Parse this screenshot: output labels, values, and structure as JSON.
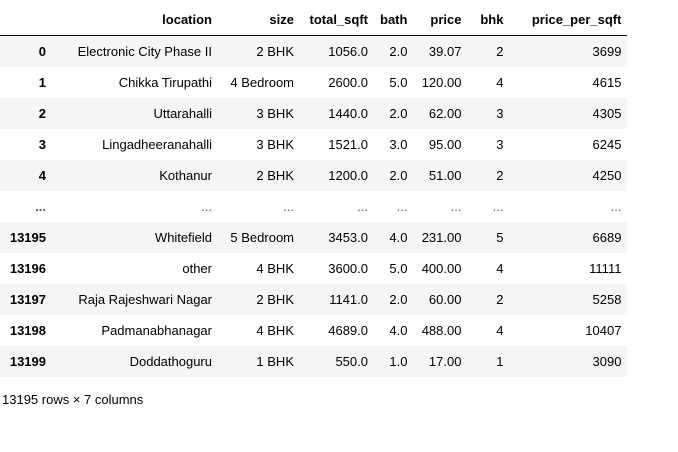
{
  "dataframe": {
    "index_header": "",
    "columns": [
      "location",
      "size",
      "total_sqft",
      "bath",
      "price",
      "bhk",
      "price_per_sqft"
    ],
    "rows": [
      {
        "index": "0",
        "cells": [
          "Electronic City Phase II",
          "2 BHK",
          "1056.0",
          "2.0",
          "39.07",
          "2",
          "3699"
        ]
      },
      {
        "index": "1",
        "cells": [
          "Chikka Tirupathi",
          "4 Bedroom",
          "2600.0",
          "5.0",
          "120.00",
          "4",
          "4615"
        ]
      },
      {
        "index": "2",
        "cells": [
          "Uttarahalli",
          "3 BHK",
          "1440.0",
          "2.0",
          "62.00",
          "3",
          "4305"
        ]
      },
      {
        "index": "3",
        "cells": [
          "Lingadheeranahalli",
          "3 BHK",
          "1521.0",
          "3.0",
          "95.00",
          "3",
          "6245"
        ]
      },
      {
        "index": "4",
        "cells": [
          "Kothanur",
          "2 BHK",
          "1200.0",
          "2.0",
          "51.00",
          "2",
          "4250"
        ]
      },
      {
        "index": "...",
        "cells": [
          "...",
          "...",
          "...",
          "...",
          "...",
          "...",
          "..."
        ]
      },
      {
        "index": "13195",
        "cells": [
          "Whitefield",
          "5 Bedroom",
          "3453.0",
          "4.0",
          "231.00",
          "5",
          "6689"
        ]
      },
      {
        "index": "13196",
        "cells": [
          "other",
          "4 BHK",
          "3600.0",
          "5.0",
          "400.00",
          "4",
          "11111"
        ]
      },
      {
        "index": "13197",
        "cells": [
          "Raja Rajeshwari Nagar",
          "2 BHK",
          "1141.0",
          "2.0",
          "60.00",
          "2",
          "5258"
        ]
      },
      {
        "index": "13198",
        "cells": [
          "Padmanabhanagar",
          "4 BHK",
          "4689.0",
          "4.0",
          "488.00",
          "4",
          "10407"
        ]
      },
      {
        "index": "13199",
        "cells": [
          "Doddathoguru",
          "1 BHK",
          "550.0",
          "1.0",
          "17.00",
          "1",
          "3090"
        ]
      }
    ],
    "shape_text": "13195 rows × 7 columns"
  }
}
